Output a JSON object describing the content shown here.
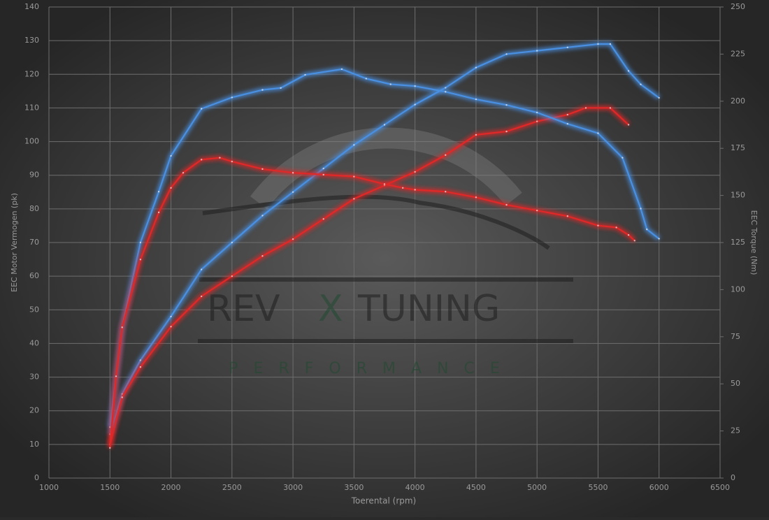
{
  "chart_data": {
    "type": "line",
    "xlabel": "Toerental (rpm)",
    "ylabel": "EEC Motor Vermogen (pk)",
    "y2label": "EEC Torque (Nm)",
    "xlim": [
      1000,
      6500
    ],
    "xticks": [
      1000,
      1500,
      2000,
      2500,
      3000,
      3500,
      4000,
      4500,
      5000,
      5500,
      6000,
      6500
    ],
    "ylim": [
      0,
      140
    ],
    "yticks": [
      0,
      10,
      20,
      30,
      40,
      50,
      60,
      70,
      80,
      90,
      100,
      110,
      120,
      130,
      140
    ],
    "y2lim": [
      0,
      250
    ],
    "y2ticks": [
      0,
      25,
      50,
      75,
      100,
      125,
      150,
      175,
      200,
      225,
      250
    ],
    "grid": true,
    "watermark": [
      "REV",
      "X",
      "TUNING",
      "PERFORMANCE"
    ],
    "series": [
      {
        "color": "#4a90e2",
        "axis": "y",
        "x": [
          1500,
          1600,
          1750,
          2000,
          2250,
          2500,
          2750,
          3000,
          3250,
          3500,
          3750,
          4000,
          4250,
          4500,
          4750,
          5000,
          5250,
          5500,
          5600,
          5750,
          5850,
          6000
        ],
        "values": [
          13,
          25,
          35,
          48,
          62,
          70,
          78,
          85,
          92,
          99,
          105,
          111,
          116,
          122,
          126,
          127,
          128,
          129,
          129,
          121,
          117,
          113
        ]
      },
      {
        "color": "#e02828",
        "axis": "y",
        "x": [
          1500,
          1600,
          1750,
          2000,
          2250,
          2500,
          2750,
          3000,
          3250,
          3500,
          3750,
          4000,
          4250,
          4500,
          4750,
          5000,
          5250,
          5400,
          5600,
          5750
        ],
        "values": [
          10,
          24,
          33,
          45,
          54,
          60,
          66,
          71,
          77,
          83,
          87,
          91,
          96,
          102,
          103,
          106,
          108,
          110,
          110,
          105
        ]
      },
      {
        "color": "#4a90e2",
        "axis": "y2",
        "x": [
          1500,
          1600,
          1750,
          1900,
          2000,
          2250,
          2500,
          2750,
          2900,
          3100,
          3400,
          3600,
          3800,
          4000,
          4250,
          4500,
          4750,
          5000,
          5250,
          5500,
          5700,
          5850,
          5900,
          6000
        ],
        "values": [
          27,
          80,
          125,
          152,
          171,
          196,
          202,
          206,
          207,
          214,
          217,
          212,
          209,
          208,
          205,
          201,
          198,
          194,
          188,
          183,
          170,
          143,
          132,
          127
        ]
      },
      {
        "color": "#e02828",
        "axis": "y2",
        "x": [
          1500,
          1550,
          1600,
          1750,
          1900,
          2000,
          2100,
          2250,
          2400,
          2500,
          2750,
          3000,
          3250,
          3500,
          3750,
          3900,
          4000,
          4250,
          4500,
          4750,
          5000,
          5250,
          5500,
          5650,
          5750,
          5800
        ],
        "values": [
          16,
          54,
          80,
          116,
          141,
          154,
          162,
          169,
          170,
          168,
          164,
          162,
          161,
          160,
          156,
          154,
          153,
          152,
          149,
          145,
          142,
          139,
          134,
          133,
          129,
          126
        ]
      }
    ]
  }
}
